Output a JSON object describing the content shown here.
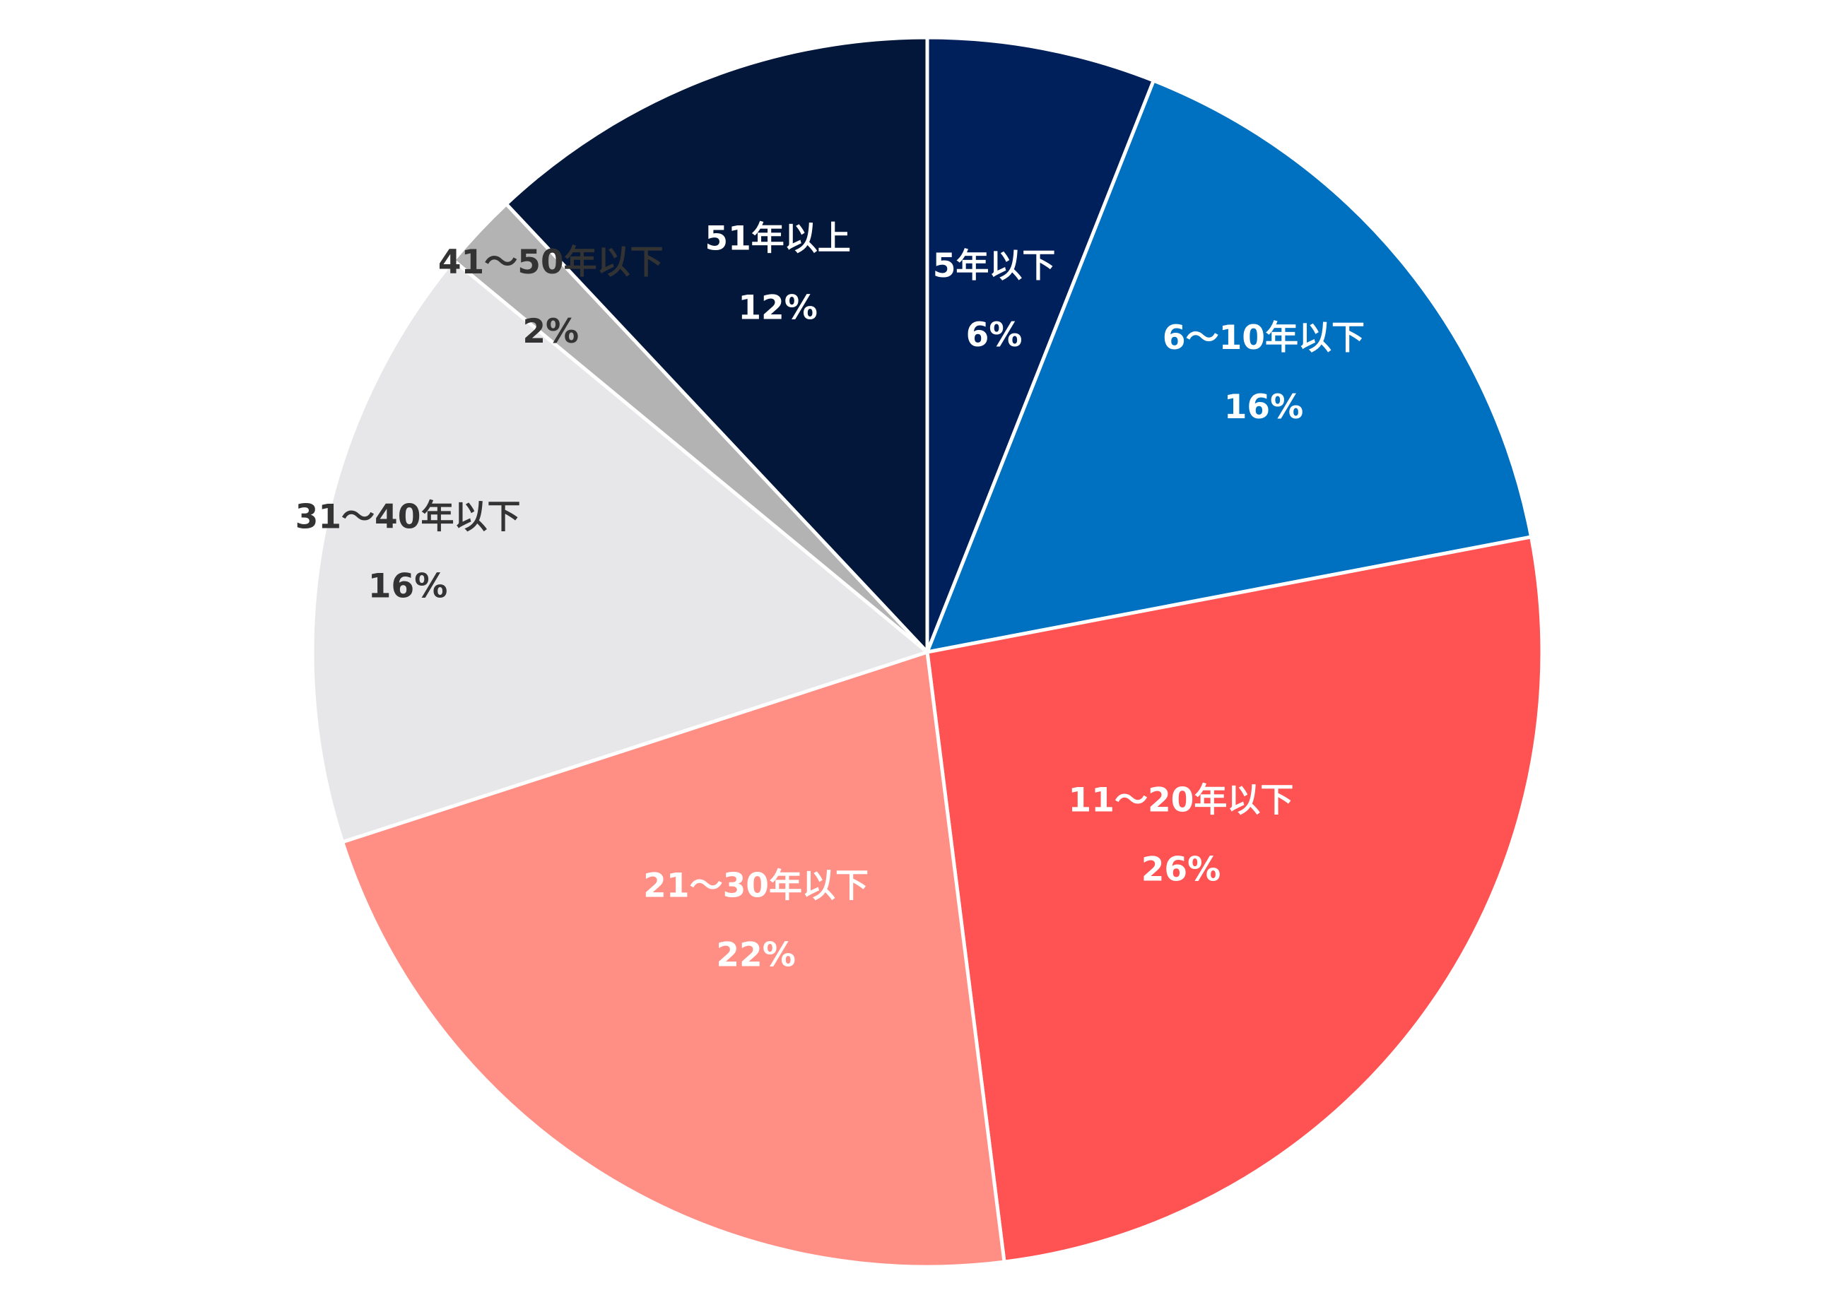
{
  "chart_data": {
    "type": "pie",
    "categories": [
      "5年以下",
      "6〜10年以下",
      "11〜20年以下",
      "21〜30年以下",
      "31〜40年以下",
      "41〜50年以下",
      "51年以上"
    ],
    "values": [
      6,
      16,
      26,
      22,
      16,
      2,
      12
    ],
    "value_labels": [
      "6%",
      "16%",
      "26%",
      "22%",
      "16%",
      "2%",
      "12%"
    ],
    "colors": [
      "#00205b",
      "#0070c0",
      "#ff5252",
      "#ff8f85",
      "#e7e7e9",
      "#b3b3b3",
      "#02173a"
    ]
  }
}
